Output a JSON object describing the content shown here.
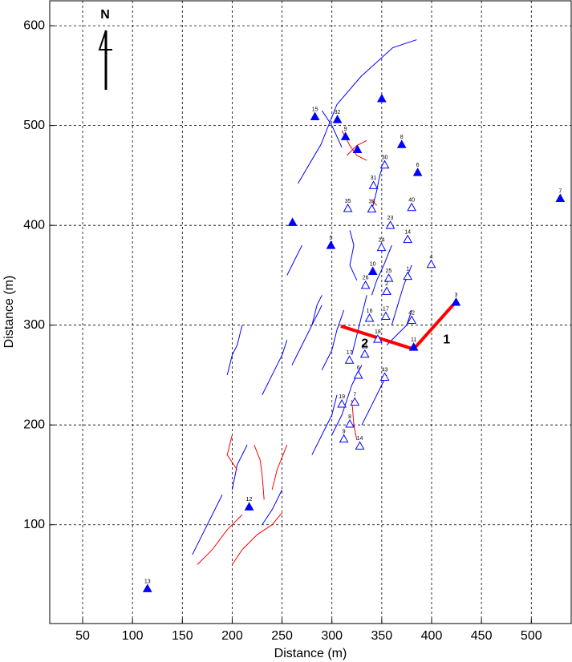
{
  "chart_data": {
    "type": "scatter",
    "xlabel": "Distance (m)",
    "ylabel": "Distance (m)",
    "north_label": "N",
    "xlim": [
      17,
      540
    ],
    "ylim": [
      1,
      625
    ],
    "xticks": [
      50,
      100,
      150,
      200,
      250,
      300,
      350,
      400,
      450,
      500
    ],
    "yticks": [
      100,
      200,
      300,
      400,
      500,
      600
    ],
    "grid": true,
    "series": [
      {
        "marker": "filled-triangle",
        "color": "#0000ff",
        "x": [
          283,
          305.5,
          350,
          313.6,
          325.6,
          370,
          386,
          529,
          260.5,
          299,
          341,
          424.5,
          382,
          217,
          115
        ],
        "y": [
          509,
          506,
          527,
          489,
          476,
          481,
          453,
          427,
          403,
          380,
          354,
          323,
          278,
          118,
          36
        ],
        "labels": [
          "15",
          "32",
          null,
          "9",
          null,
          "8",
          "6",
          "7",
          null,
          "5",
          "10",
          "3",
          "11",
          "12",
          "13"
        ]
      },
      {
        "marker": "open-triangle",
        "color": "#0000ff",
        "x": [
          353,
          341.7,
          316,
          340,
          380,
          358.6,
          349.7,
          376,
          399.6,
          357,
          333.7,
          376,
          355,
          337.7,
          380,
          354,
          346,
          333,
          317.6,
          326.5,
          353,
          310,
          323,
          318,
          312,
          328
        ],
        "y": [
          460.6,
          440,
          417,
          416.5,
          418,
          400,
          378,
          386,
          361,
          347,
          340,
          349,
          334,
          307,
          305,
          309,
          286,
          271,
          265,
          250,
          248,
          221,
          223,
          201,
          186,
          179
        ],
        "labels": [
          "30",
          "31",
          "35",
          "33",
          "40",
          "23",
          "24",
          "14",
          "4",
          "25",
          "26",
          "1",
          "2",
          "16",
          "42",
          "17",
          "18",
          "21",
          "17",
          "6",
          "43",
          "19",
          "7",
          "8",
          "9",
          "14"
        ]
      }
    ],
    "traces": [
      {
        "color": "#0000ff",
        "x": [
          266,
          289,
          305,
          329,
          361,
          385
        ],
        "y": [
          442,
          481,
          521,
          549,
          578,
          586
        ]
      },
      {
        "color": "#0000ff",
        "x": [
          290,
          300,
          310
        ],
        "y": [
          515,
          500,
          478
        ]
      },
      {
        "color": "#0000ff",
        "x": [
          353,
          348,
          345,
          340
        ],
        "y": [
          465,
          450,
          435,
          415
        ]
      },
      {
        "color": "#0000ff",
        "x": [
          318,
          322,
          318,
          325
        ],
        "y": [
          395,
          380,
          360,
          345
        ]
      },
      {
        "color": "#0000ff",
        "x": [
          340,
          345,
          352,
          360
        ],
        "y": [
          330,
          345,
          360,
          380
        ]
      },
      {
        "color": "#0000ff",
        "x": [
          360,
          366,
          372,
          380
        ],
        "y": [
          300,
          320,
          340,
          360
        ]
      },
      {
        "color": "#0000ff",
        "x": [
          320,
          325,
          330,
          335
        ],
        "y": [
          270,
          290,
          310,
          330
        ]
      },
      {
        "color": "#0000ff",
        "x": [
          290,
          300,
          305,
          312
        ],
        "y": [
          255,
          275,
          295,
          315
        ]
      },
      {
        "color": "#0000ff",
        "x": [
          260,
          270,
          280,
          290
        ],
        "y": [
          260,
          280,
          300,
          320
        ]
      },
      {
        "color": "#0000ff",
        "x": [
          230,
          240,
          250,
          255
        ],
        "y": [
          230,
          250,
          270,
          285
        ]
      },
      {
        "color": "#0000ff",
        "x": [
          195,
          200,
          205,
          210
        ],
        "y": [
          250,
          270,
          280,
          300
        ]
      },
      {
        "color": "#0000ff",
        "x": [
          200,
          205,
          215
        ],
        "y": [
          135,
          160,
          180
        ]
      },
      {
        "color": "#0000ff",
        "x": [
          280,
          290,
          300,
          305
        ],
        "y": [
          170,
          190,
          210,
          230
        ]
      },
      {
        "color": "#0000ff",
        "x": [
          300,
          310,
          320,
          330
        ],
        "y": [
          190,
          210,
          240,
          260
        ]
      },
      {
        "color": "#0000ff",
        "x": [
          330,
          340,
          350,
          355
        ],
        "y": [
          200,
          220,
          240,
          250
        ]
      },
      {
        "color": "#0000ff",
        "x": [
          160,
          170,
          180,
          190
        ],
        "y": [
          70,
          90,
          110,
          130
        ]
      },
      {
        "color": "#0000ff",
        "x": [
          230,
          240,
          250
        ],
        "y": [
          100,
          115,
          135
        ]
      },
      {
        "color": "#0000ff",
        "x": [
          255,
          265,
          270
        ],
        "y": [
          350,
          370,
          380
        ]
      },
      {
        "color": "#0000ff",
        "x": [
          280,
          285,
          290
        ],
        "y": [
          300,
          320,
          330
        ]
      },
      {
        "color": "#0000ff",
        "x": [
          355,
          365,
          375,
          380
        ],
        "y": [
          280,
          290,
          300,
          315
        ]
      },
      {
        "color": "#ff0000",
        "x": [
          310,
          318,
          325,
          335
        ],
        "y": [
          495,
          480,
          470,
          465
        ]
      },
      {
        "color": "#ff0000",
        "x": [
          315,
          325,
          335
        ],
        "y": [
          470,
          480,
          485
        ]
      },
      {
        "color": "#ff0000",
        "x": [
          222,
          228,
          230,
          232
        ],
        "y": [
          180,
          165,
          150,
          125
        ]
      },
      {
        "color": "#ff0000",
        "x": [
          200,
          210,
          225,
          240,
          250
        ],
        "y": [
          60,
          75,
          90,
          100,
          112
        ]
      },
      {
        "color": "#ff0000",
        "x": [
          165,
          180,
          195,
          210
        ],
        "y": [
          60,
          75,
          95,
          110
        ]
      },
      {
        "color": "#ff0000",
        "x": [
          200,
          195,
          205
        ],
        "y": [
          190,
          170,
          155
        ]
      },
      {
        "color": "#ff0000",
        "x": [
          240,
          245,
          255
        ],
        "y": [
          135,
          155,
          180
        ]
      },
      {
        "color": "#ff0000",
        "x": [
          325,
          322,
          320
        ],
        "y": [
          185,
          200,
          225
        ]
      },
      {
        "color": "#ff0000",
        "x": [
          340,
          345
        ],
        "y": [
          425,
          420
        ]
      }
    ],
    "profile": {
      "color": "#ff0000",
      "x": [
        309,
        382,
        424
      ],
      "y": [
        299,
        276,
        323
      ]
    },
    "annotations": [
      {
        "text": "1",
        "x": 415,
        "y": 285
      },
      {
        "text": "2",
        "x": 333,
        "y": 281
      }
    ]
  }
}
